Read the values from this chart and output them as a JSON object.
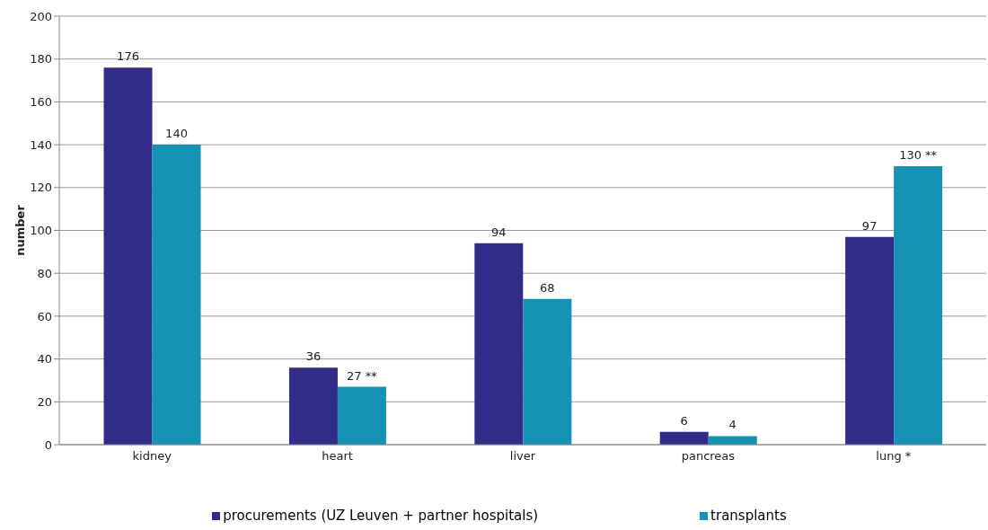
{
  "chart_data": {
    "type": "bar",
    "ylabel": "number",
    "categories": [
      "kidney",
      "heart",
      "liver",
      "pancreas",
      "lung *"
    ],
    "series": [
      {
        "name": "procurements (UZ Leuven + partner hospitals)",
        "color": "#312c87",
        "values": [
          176,
          36,
          94,
          6,
          97
        ],
        "value_labels": [
          "176",
          "36",
          "94",
          "6",
          "97"
        ]
      },
      {
        "name": "transplants",
        "color": "#1693b4",
        "values": [
          140,
          27,
          68,
          4,
          130
        ],
        "value_labels": [
          "140",
          "27 **",
          "68",
          "4",
          "130 **"
        ]
      }
    ],
    "ylim": [
      0,
      200
    ],
    "yticks": [
      0,
      20,
      40,
      60,
      80,
      100,
      120,
      140,
      160,
      180,
      200
    ],
    "grid": "y",
    "legend": "bottom"
  }
}
